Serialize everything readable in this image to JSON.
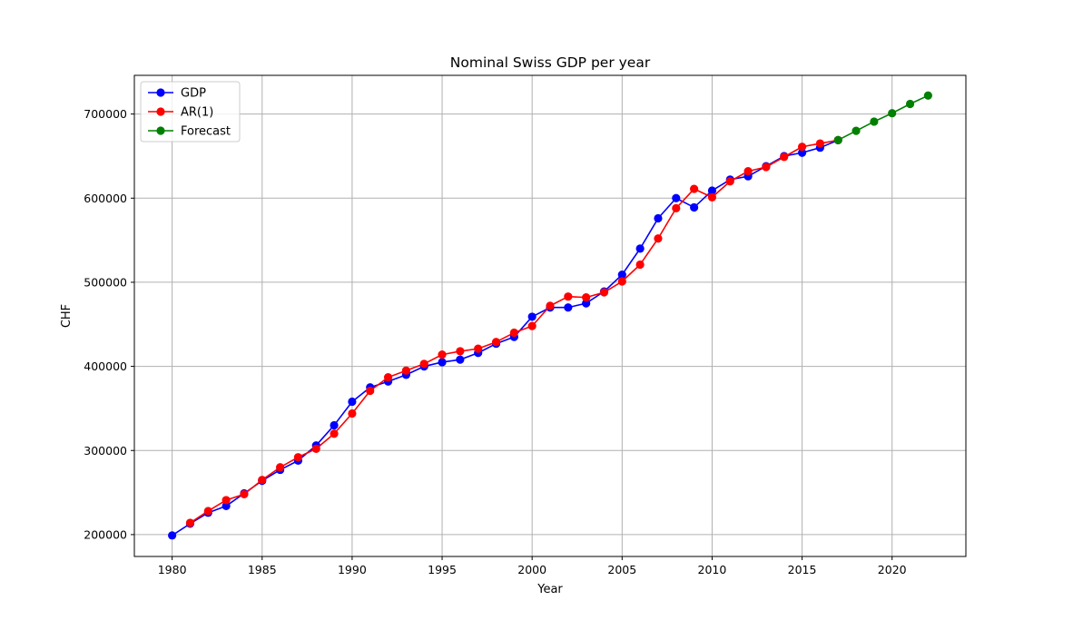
{
  "chart_data": {
    "type": "line",
    "title": "Nominal Swiss GDP per year",
    "xlabel": "Year",
    "ylabel": "CHF",
    "xlim": [
      1977.9,
      2024.1
    ],
    "ylim": [
      174000,
      746000
    ],
    "xticks": [
      1980,
      1985,
      1990,
      1995,
      2000,
      2005,
      2010,
      2015,
      2020
    ],
    "yticks": [
      200000,
      300000,
      400000,
      500000,
      600000,
      700000
    ],
    "grid": true,
    "legend_position": "top-left",
    "series": [
      {
        "name": "GDP",
        "color": "#0000ff",
        "x": [
          1980,
          1981,
          1982,
          1983,
          1984,
          1985,
          1986,
          1987,
          1988,
          1989,
          1990,
          1991,
          1992,
          1993,
          1994,
          1995,
          1996,
          1997,
          1998,
          1999,
          2000,
          2001,
          2002,
          2003,
          2004,
          2005,
          2006,
          2007,
          2008,
          2009,
          2010,
          2011,
          2012,
          2013,
          2014,
          2015,
          2016,
          2017
        ],
        "y": [
          199000,
          213000,
          226000,
          234000,
          249000,
          264000,
          277000,
          288000,
          306000,
          330000,
          358000,
          375000,
          382000,
          390000,
          400000,
          405000,
          408000,
          416000,
          427000,
          435000,
          459000,
          470000,
          470000,
          475000,
          489000,
          509000,
          540000,
          576000,
          600000,
          589000,
          609000,
          622000,
          626000,
          638000,
          650000,
          654000,
          660000,
          669000
        ]
      },
      {
        "name": "AR(1)",
        "color": "#ff0000",
        "x": [
          1981,
          1982,
          1983,
          1984,
          1985,
          1986,
          1987,
          1988,
          1989,
          1990,
          1991,
          1992,
          1993,
          1994,
          1995,
          1996,
          1997,
          1998,
          1999,
          2000,
          2001,
          2002,
          2003,
          2004,
          2005,
          2006,
          2007,
          2008,
          2009,
          2010,
          2011,
          2012,
          2013,
          2014,
          2015,
          2016,
          2017
        ],
        "y": [
          214000,
          228000,
          241000,
          248000,
          265000,
          280000,
          292000,
          302000,
          320000,
          344000,
          371000,
          387000,
          395000,
          403000,
          414000,
          418000,
          421000,
          429000,
          440000,
          448000,
          472000,
          483000,
          482000,
          488000,
          501000,
          521000,
          552000,
          588000,
          611000,
          601000,
          620000,
          632000,
          637000,
          649000,
          661000,
          665000,
          669000
        ]
      },
      {
        "name": "Forecast",
        "color": "#008000",
        "x": [
          2017,
          2018,
          2019,
          2020,
          2021,
          2022
        ],
        "y": [
          669000,
          680000,
          691000,
          701000,
          712000,
          722000
        ]
      }
    ]
  }
}
